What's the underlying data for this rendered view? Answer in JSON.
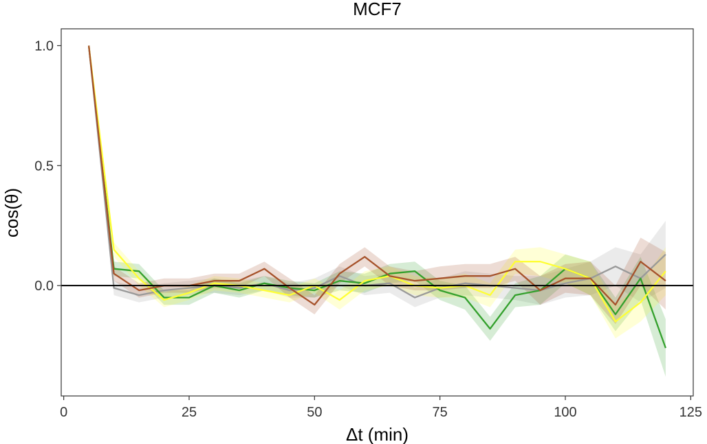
{
  "chart_data": {
    "type": "line",
    "title": "MCF7",
    "xlabel": "Δt (min)",
    "ylabel": "cos(θ)",
    "xlim": [
      -0.5,
      125.5
    ],
    "ylim": [
      -0.46,
      1.07
    ],
    "xticks": [
      0,
      25,
      50,
      75,
      100,
      125
    ],
    "xtick_labels": [
      "0",
      "25",
      "50",
      "75",
      "100",
      "125"
    ],
    "yticks": [
      0.0,
      0.5,
      1.0
    ],
    "ytick_labels": [
      "0.0",
      "0.5",
      "1.0"
    ],
    "reference_line": 0,
    "grid": false,
    "legend": "none",
    "x": [
      5,
      10,
      15,
      20,
      25,
      30,
      35,
      40,
      45,
      50,
      55,
      60,
      65,
      70,
      75,
      80,
      85,
      90,
      95,
      100,
      105,
      110,
      115,
      120
    ],
    "series": [
      {
        "color": "#999999",
        "values": [
          1.0,
          -0.01,
          -0.04,
          -0.02,
          -0.01,
          0.0,
          -0.01,
          0.01,
          -0.02,
          -0.01,
          0.04,
          0.0,
          0.01,
          -0.05,
          -0.01,
          0.01,
          0.0,
          -0.01,
          -0.02,
          0.01,
          0.03,
          0.08,
          0.03,
          0.13
        ],
        "band": [
          0.0,
          0.03,
          0.03,
          0.03,
          0.03,
          0.03,
          0.03,
          0.03,
          0.03,
          0.04,
          0.04,
          0.04,
          0.04,
          0.04,
          0.04,
          0.05,
          0.05,
          0.05,
          0.06,
          0.06,
          0.07,
          0.08,
          0.1,
          0.14
        ]
      },
      {
        "color": "#33a02c",
        "values": [
          1.0,
          0.07,
          0.06,
          -0.05,
          -0.05,
          0.0,
          -0.02,
          0.01,
          -0.01,
          -0.02,
          0.02,
          0.01,
          0.05,
          0.06,
          -0.02,
          -0.05,
          -0.18,
          -0.04,
          -0.02,
          0.07,
          0.03,
          -0.12,
          0.03,
          -0.26
        ],
        "band": [
          0.0,
          0.03,
          0.03,
          0.03,
          0.03,
          0.03,
          0.03,
          0.03,
          0.03,
          0.03,
          0.04,
          0.04,
          0.04,
          0.04,
          0.04,
          0.05,
          0.05,
          0.05,
          0.06,
          0.06,
          0.07,
          0.07,
          0.09,
          0.12
        ]
      },
      {
        "color": "#ffff33",
        "values": [
          1.0,
          0.15,
          0.03,
          -0.06,
          -0.03,
          0.01,
          0.0,
          -0.02,
          -0.04,
          0.0,
          -0.06,
          0.02,
          0.04,
          0.0,
          -0.01,
          0.0,
          -0.04,
          0.1,
          0.1,
          0.07,
          0.03,
          -0.15,
          -0.07,
          0.06
        ],
        "band": [
          0.0,
          0.03,
          0.03,
          0.03,
          0.03,
          0.03,
          0.03,
          0.03,
          0.03,
          0.03,
          0.04,
          0.04,
          0.04,
          0.04,
          0.04,
          0.05,
          0.05,
          0.05,
          0.06,
          0.06,
          0.07,
          0.07,
          0.08,
          0.1
        ]
      },
      {
        "color": "#a6522b",
        "values": [
          1.0,
          0.05,
          -0.02,
          0.0,
          0.0,
          0.02,
          0.02,
          0.07,
          -0.01,
          -0.08,
          0.05,
          0.12,
          0.04,
          0.02,
          0.03,
          0.04,
          0.04,
          0.07,
          -0.02,
          0.03,
          0.03,
          -0.08,
          0.1,
          0.02
        ],
        "band": [
          0.0,
          0.03,
          0.03,
          0.03,
          0.03,
          0.03,
          0.03,
          0.03,
          0.04,
          0.04,
          0.04,
          0.04,
          0.04,
          0.04,
          0.05,
          0.05,
          0.05,
          0.05,
          0.06,
          0.06,
          0.07,
          0.08,
          0.1,
          0.12
        ]
      }
    ]
  }
}
